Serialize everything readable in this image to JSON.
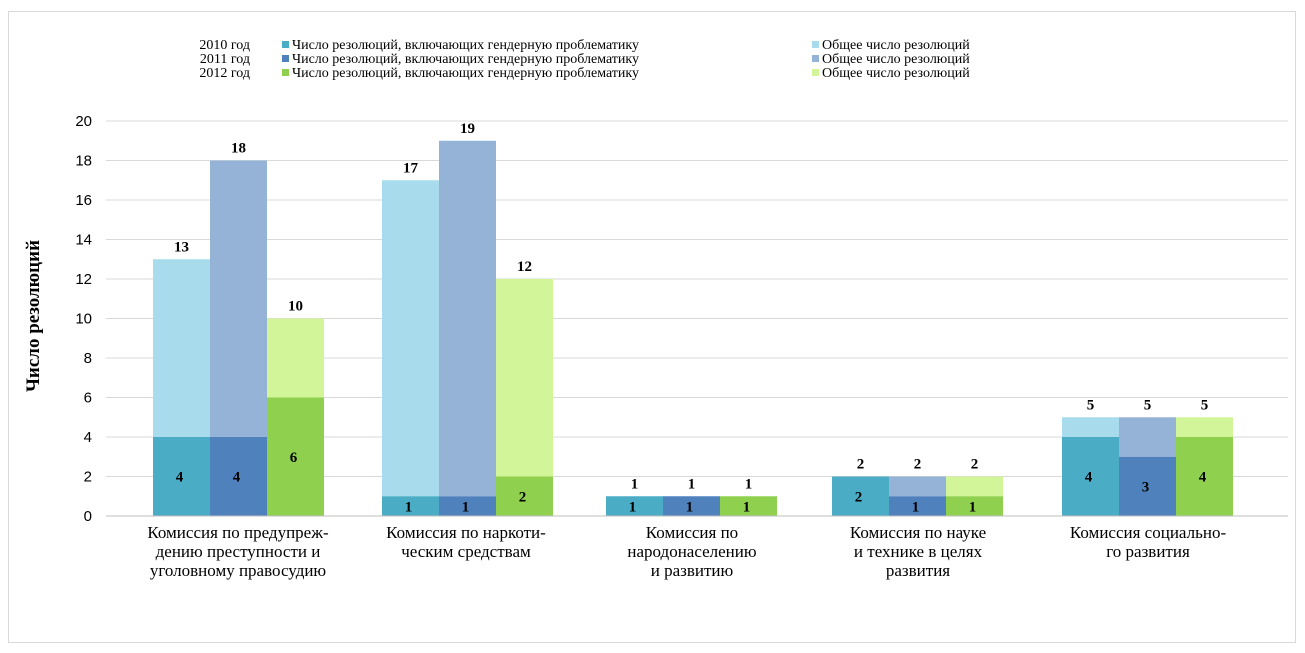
{
  "chart_data": {
    "type": "bar",
    "ylabel": "Число резолюций",
    "ylim": [
      0,
      20
    ],
    "yticks": [
      0,
      2,
      4,
      6,
      8,
      10,
      12,
      14,
      16,
      18,
      20
    ],
    "grid": true,
    "legend_position": "top",
    "categories": [
      [
        "Комиссия по предупреж-",
        "дению преступности и",
        "уголовному правосудию"
      ],
      [
        "Комиссия по наркоти-",
        "ческим средствам"
      ],
      [
        "Комиссия по",
        "народонаселению",
        "и развитию"
      ],
      [
        "Комиссия по науке",
        "и технике в целях",
        "развития"
      ],
      [
        "Комиссия социально-",
        "го развития"
      ]
    ],
    "legend": [
      {
        "year": "2010 год",
        "gender_label": "Число резолюций, включающих гендерную проблематику",
        "total_label": "Общее число резолюций",
        "gender_color": "#4bacc6",
        "total_color": "#a8dcec"
      },
      {
        "year": "2011 год",
        "gender_label": "Число резолюций, включающих гендерную проблематику",
        "total_label": "Общее число резолюций",
        "gender_color": "#4f81bd",
        "total_color": "#95b3d7"
      },
      {
        "year": "2012 год",
        "gender_label": "Число резолюций, включающих гендерную проблематику",
        "total_label": "Общее число резолюций",
        "gender_color": "#8fd14f",
        "total_color": "#d2f59a"
      }
    ],
    "series": [
      {
        "year": "2010 год",
        "gender": [
          4,
          1,
          1,
          2,
          4
        ],
        "total": [
          13,
          17,
          1,
          2,
          5
        ]
      },
      {
        "year": "2011 год",
        "gender": [
          4,
          1,
          1,
          1,
          3
        ],
        "total": [
          18,
          19,
          1,
          2,
          5
        ]
      },
      {
        "year": "2012 год",
        "gender": [
          6,
          2,
          1,
          1,
          4
        ],
        "total": [
          10,
          12,
          1,
          2,
          5
        ]
      }
    ]
  }
}
